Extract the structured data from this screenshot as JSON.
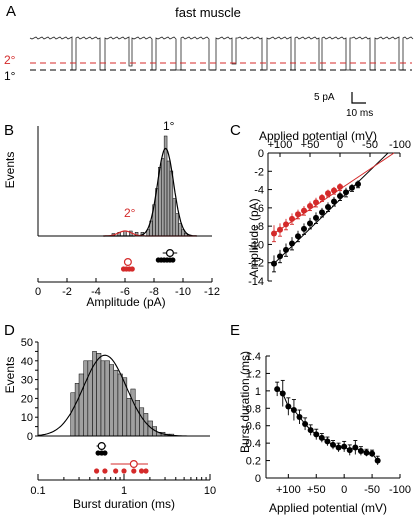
{
  "figure": {
    "colors": {
      "black": "#000000",
      "red": "#d42a2a",
      "grey": "#a0a0a0",
      "trace": "#222222"
    }
  },
  "A": {
    "panel_label": "A",
    "title": "fast muscle",
    "level_primary": "1°",
    "level_secondary": "2°",
    "scalebar_y": "5 pA",
    "scalebar_x": "10 ms"
  },
  "B": {
    "panel_label": "B",
    "ylabel": "Events",
    "xlabel": "Amplitude (pA)",
    "peak_primary": "1°",
    "peak_secondary": "2°",
    "xticks": [
      "0",
      "-2",
      "-4",
      "-6",
      "-8",
      "-10",
      "-12"
    ]
  },
  "C": {
    "panel_label": "C",
    "xlabel": "Applied potential (mV)",
    "ylabel": "Amplitude (pA)",
    "xticks": [
      "+100",
      "+50",
      "0",
      "-50",
      "-100"
    ],
    "yticks": [
      "0",
      "-2",
      "-4",
      "-6",
      "-8",
      "-10",
      "-12",
      "-14"
    ]
  },
  "D": {
    "panel_label": "D",
    "ylabel": "Events",
    "xlabel": "Burst duration (ms)",
    "xticks": [
      "0.1",
      "1",
      "10"
    ],
    "yticks": [
      "0",
      "5",
      "10",
      "15",
      "20",
      "25",
      "30",
      "35",
      "40",
      "45",
      "50"
    ]
  },
  "E": {
    "panel_label": "E",
    "ylabel": "Burst duration (ms)",
    "xlabel": "Applied potential (mV)",
    "xticks": [
      "+100",
      "+50",
      "0",
      "-50",
      "-100"
    ],
    "yticks": [
      "0",
      "0.2",
      "0.4",
      "0.6",
      "0.8",
      "1",
      "1.2",
      "1.4"
    ]
  },
  "chart_data": [
    {
      "panel": "B",
      "type": "bar",
      "x": [
        -5.2,
        -5.6,
        -6.0,
        -6.4,
        -6.8,
        -7.2,
        -7.6,
        -7.8,
        -8.0,
        -8.2,
        -8.4,
        -8.6,
        -8.8,
        -9.0,
        -9.2,
        -9.4,
        -9.6,
        -9.8,
        -10.0,
        -10.2,
        -10.4
      ],
      "values": [
        2,
        3,
        4,
        4,
        3,
        3,
        5,
        12,
        25,
        38,
        55,
        62,
        80,
        60,
        52,
        30,
        18,
        10,
        5,
        2,
        1
      ],
      "gaussian_fits": [
        {
          "mean": -8.8,
          "sd": 0.55,
          "peak": 70
        },
        {
          "mean": -6.0,
          "sd": 0.45,
          "peak": 4
        }
      ],
      "means": [
        {
          "label": "1°",
          "mean": -9.1,
          "err": 0.5,
          "individual": [
            -8.3,
            -8.5,
            -8.7,
            -8.9,
            -9.1,
            -9.3
          ]
        },
        {
          "label": "2°",
          "mean": -6.2,
          "err": 0.2,
          "individual": [
            -5.9,
            -6.1,
            -6.3,
            -6.5
          ]
        }
      ],
      "xlim": [
        0,
        -12
      ]
    },
    {
      "panel": "C",
      "type": "scatter",
      "xlim": [
        120,
        -100
      ],
      "ylim": [
        -14,
        0
      ],
      "series": [
        {
          "color": "black",
          "x": [
            110,
            100,
            90,
            80,
            70,
            60,
            50,
            40,
            30,
            20,
            10,
            0,
            -10,
            -20,
            -30
          ],
          "y": [
            -12.1,
            -11.3,
            -10.6,
            -9.9,
            -9.1,
            -8.3,
            -7.7,
            -7.1,
            -6.5,
            -5.9,
            -5.3,
            -4.7,
            -4.3,
            -3.8,
            -3.4
          ],
          "err": [
            0.9,
            0.7,
            0.7,
            0.7,
            0.6,
            0.6,
            0.6,
            0.6,
            0.5,
            0.5,
            0.5,
            0.5,
            0.5,
            0.4,
            0.4
          ],
          "fit": [
            [
              110,
              -12.1
            ],
            [
              -80,
              0
            ]
          ]
        },
        {
          "color": "red",
          "x": [
            110,
            100,
            90,
            80,
            70,
            60,
            50,
            40,
            30,
            20,
            10,
            0
          ],
          "y": [
            -8.8,
            -8.4,
            -7.8,
            -7.2,
            -6.7,
            -6.3,
            -5.8,
            -5.4,
            -4.9,
            -4.4,
            -4.1,
            -3.7
          ],
          "err": [
            0.9,
            0.7,
            0.6,
            0.6,
            0.5,
            0.5,
            0.5,
            0.5,
            0.4,
            0.4,
            0.4,
            0.4
          ],
          "fit": [
            [
              110,
              -8.8
            ],
            [
              -90,
              0
            ]
          ]
        }
      ]
    },
    {
      "panel": "D",
      "type": "bar",
      "x": [
        0.24,
        0.27,
        0.3,
        0.34,
        0.38,
        0.43,
        0.48,
        0.54,
        0.6,
        0.68,
        0.76,
        0.85,
        0.96,
        1.08,
        1.2,
        1.35,
        1.52,
        1.7,
        1.9,
        2.15,
        2.4,
        2.7,
        3.0,
        3.4,
        3.8
      ],
      "values": [
        23,
        28,
        33,
        40,
        40,
        45,
        44,
        40,
        40,
        38,
        35,
        33,
        31,
        20,
        25,
        19,
        15,
        12,
        8,
        5,
        2,
        2,
        1,
        1,
        0
      ],
      "fit_peak_x": 0.6,
      "fit_peak_y": 43,
      "means": [
        {
          "color": "black",
          "mean": 0.55,
          "err": 0.07,
          "individual": [
            0.5,
            0.55,
            0.6
          ]
        },
        {
          "color": "red",
          "mean": 1.3,
          "err": 0.6,
          "individual": [
            0.48,
            0.6,
            0.8,
            1.0,
            1.3,
            1.6,
            1.8
          ]
        }
      ],
      "xlim": [
        0.1,
        10
      ],
      "ylim": [
        0,
        50
      ]
    },
    {
      "panel": "E",
      "type": "scatter",
      "xlim": [
        140,
        -100
      ],
      "ylim": [
        0,
        1.4
      ],
      "series": [
        {
          "color": "black",
          "x": [
            120,
            110,
            100,
            90,
            80,
            70,
            60,
            50,
            40,
            30,
            20,
            10,
            0,
            -10,
            -20,
            -30,
            -40,
            -50,
            -60
          ],
          "y": [
            1.02,
            0.97,
            0.82,
            0.78,
            0.7,
            0.62,
            0.55,
            0.5,
            0.46,
            0.42,
            0.38,
            0.35,
            0.36,
            0.32,
            0.35,
            0.31,
            0.29,
            0.28,
            0.2
          ],
          "err": [
            0.08,
            0.15,
            0.1,
            0.12,
            0.08,
            0.07,
            0.06,
            0.06,
            0.05,
            0.05,
            0.05,
            0.05,
            0.06,
            0.06,
            0.08,
            0.05,
            0.04,
            0.04,
            0.05
          ]
        }
      ]
    }
  ]
}
